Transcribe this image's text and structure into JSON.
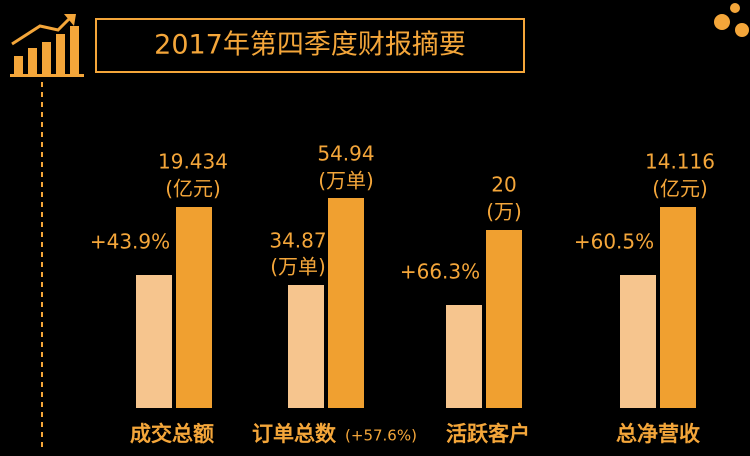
{
  "title": "2017年第四季度财报摘要",
  "groups": [
    {
      "label": "成交总额",
      "growth": "+43.9%",
      "current": "19.434",
      "current_unit": "(亿元)"
    },
    {
      "label": "订单总数",
      "note": "(+57.6%)",
      "previous": "34.87",
      "previous_unit": "(万单)",
      "current": "54.94",
      "current_unit": "(万单)"
    },
    {
      "label": "活跃客户",
      "growth": "+66.3%",
      "current": "20",
      "current_unit": "(万)"
    },
    {
      "label": "总净营收",
      "growth": "+60.5%",
      "current": "14.116",
      "current_unit": "(亿元)"
    }
  ]
}
